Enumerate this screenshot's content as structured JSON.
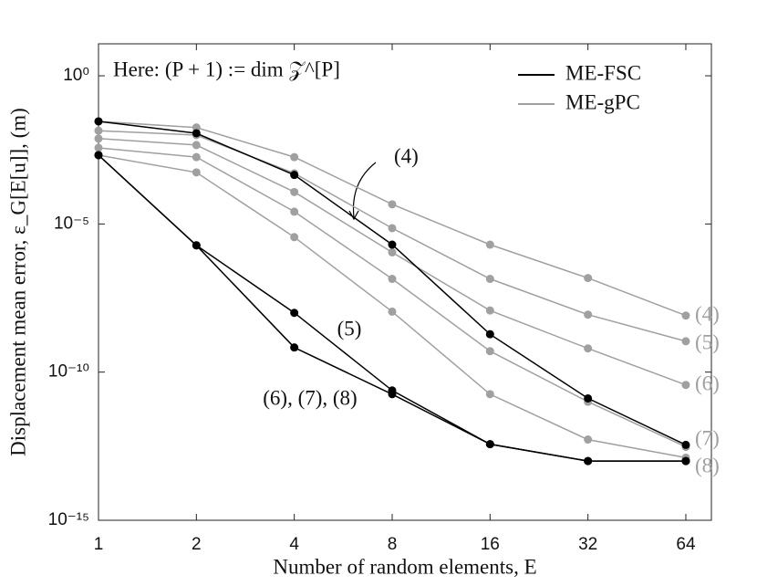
{
  "chart_data": {
    "type": "line",
    "annotation": "Here: (P + 1) := dim 𝒵^[P]",
    "x_label": "Number of random elements, E",
    "y_label": "Displacement mean error, ε_G[E[u]], (m)",
    "x": [
      1,
      2,
      4,
      8,
      16,
      32,
      64
    ],
    "xlim": [
      1,
      76.7
    ],
    "xticks": [
      1,
      2,
      4,
      8,
      16,
      32,
      64
    ],
    "xscale": "log",
    "ylim": [
      1e-15,
      12
    ],
    "yticks": [
      {
        "value": 1,
        "label": "10⁰"
      },
      {
        "value": 1e-05,
        "label": "10⁻⁵"
      },
      {
        "value": 1e-10,
        "label": "10⁻¹⁰"
      },
      {
        "value": 1e-15,
        "label": "10⁻¹⁵"
      }
    ],
    "yscale": "log",
    "legend": "upper right",
    "series": [
      {
        "name": "ME-gPC",
        "color": "#a0a0a0",
        "lines": [
          {
            "label": "(4)",
            "values": [
              0.029,
              0.018,
              0.0018,
              4.6e-05,
              2e-06,
              1.5e-07,
              8.1e-09
            ]
          },
          {
            "label": "(5)",
            "values": [
              0.014,
              0.01,
              0.00051,
              7.2e-06,
              1.4e-07,
              8.7e-09,
              1.1e-09
            ]
          },
          {
            "label": "(6)",
            "values": [
              0.0076,
              0.0046,
              0.00012,
              1.1e-06,
              1.2e-08,
              6.3e-10,
              3.7e-11
            ]
          },
          {
            "label": "(7)",
            "values": [
              0.0037,
              0.0018,
              2.6e-05,
              1.4e-07,
              5.1e-10,
              1e-11,
              3e-13
            ]
          },
          {
            "label": "(8)",
            "values": [
              0.0021,
              0.00055,
              3.6e-06,
              1.1e-08,
              1.8e-11,
              5.3e-13,
              1.3e-13
            ]
          }
        ]
      },
      {
        "name": "ME-FSC",
        "color": "#000000",
        "lines": [
          {
            "label": "(4)",
            "values": [
              0.029,
              0.0115,
              0.00045,
              2e-06,
              1.9e-09,
              1.3e-11,
              3.5e-13
            ]
          },
          {
            "label": "(5)",
            "values": [
              0.0021,
              1.9e-06,
              1e-08,
              2.4e-11,
              3.7e-13,
              1e-13,
              1e-13
            ]
          },
          {
            "label": "(6), (7), (8)",
            "values": [
              0.0021,
              1.9e-06,
              6.8e-10,
              1.8e-11,
              3.7e-13,
              1e-13,
              1e-13
            ]
          }
        ]
      }
    ]
  }
}
